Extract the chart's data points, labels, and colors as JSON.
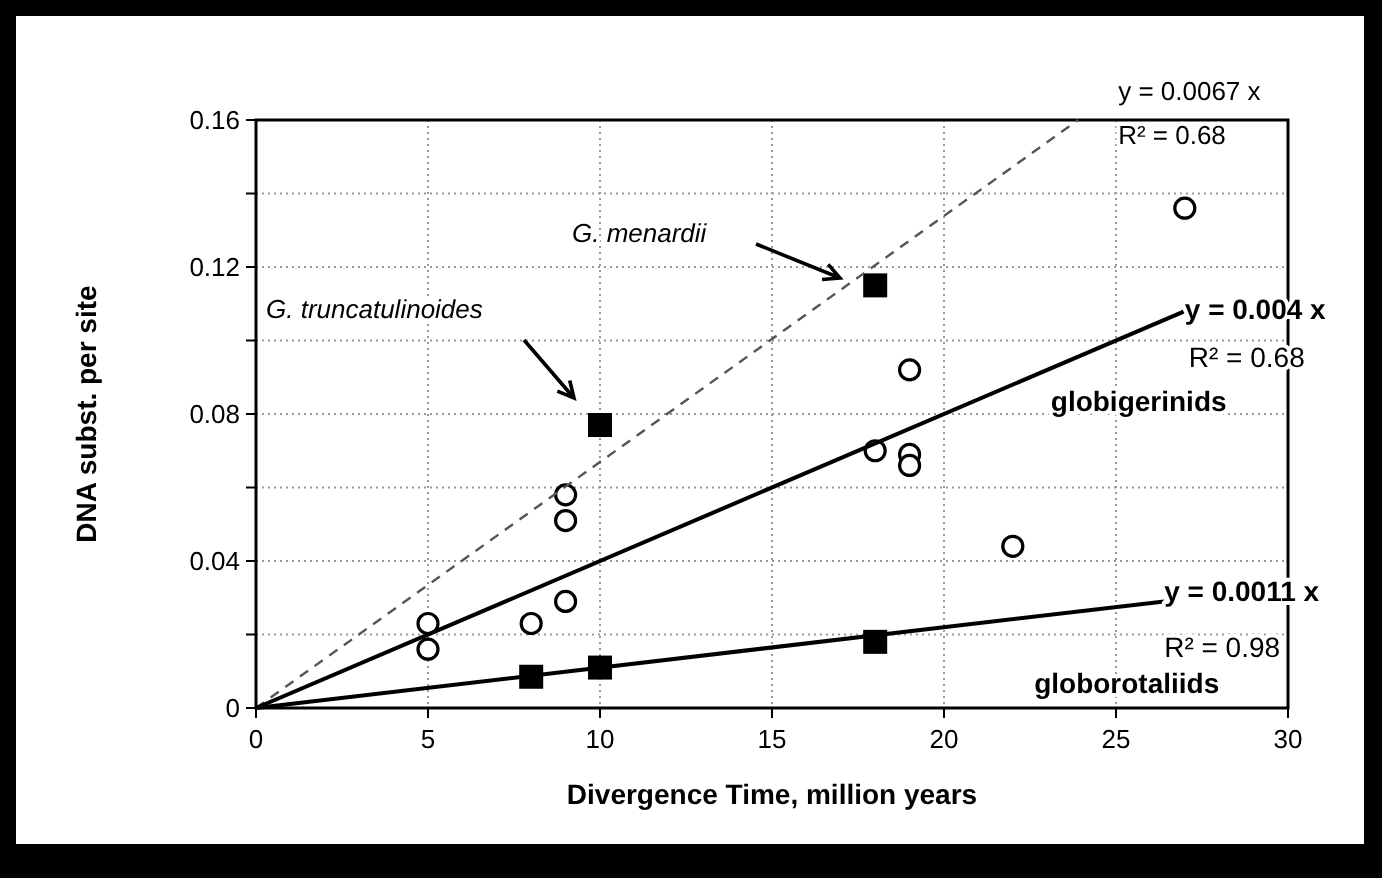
{
  "chart_data": {
    "type": "scatter",
    "xlabel": "Divergence Time, million years",
    "ylabel": "DNA subst. per site",
    "xlim": [
      0,
      30
    ],
    "xticks": [
      0,
      5,
      10,
      15,
      20,
      25,
      30
    ],
    "ylim": [
      0,
      0.16
    ],
    "yticks": [
      0,
      {
        "value": 0.02,
        "label": null
      },
      0.04,
      {
        "value": 0.06,
        "label": null
      },
      0.08,
      {
        "value": 0.1,
        "label": null
      },
      0.12,
      {
        "value": 0.14,
        "label": null
      },
      0.16
    ],
    "grid": true,
    "series": [
      {
        "marker": "circle",
        "color": "#000000",
        "x": [
          5,
          5,
          8,
          9,
          9,
          9,
          18,
          19,
          19,
          19,
          22,
          27
        ],
        "values": [
          0.023,
          0.016,
          0.023,
          0.058,
          0.051,
          0.029,
          0.07,
          0.092,
          0.069,
          0.066,
          0.044,
          0.136
        ]
      },
      {
        "marker": "square",
        "color": "#000000",
        "x": [
          8,
          10,
          10,
          18,
          18
        ],
        "values": [
          0.0085,
          0.011,
          0.077,
          0.018,
          0.115
        ]
      },
      {
        "type": "line",
        "marker": "none",
        "line_style": "dashed",
        "color": "#555555",
        "x": [
          0,
          23.9
        ],
        "values": [
          0,
          0.16
        ]
      },
      {
        "type": "line",
        "marker": "none",
        "line_style": "solid",
        "color": "#000000",
        "x": [
          0,
          27
        ],
        "values": [
          0,
          0.108
        ]
      },
      {
        "type": "line",
        "marker": "none",
        "line_style": "solid",
        "color": "#000000",
        "x": [
          0,
          26.4
        ],
        "values": [
          0,
          0.029
        ]
      }
    ],
    "annotations": [
      {
        "text": "y = 0.0067 x",
        "x": 23.9,
        "y": 0.16
      },
      {
        "text": "R² = 0.68",
        "x": 23.9,
        "y": 0.16
      },
      {
        "text": "y = 0.004 x",
        "x": 27,
        "y": 0.108
      },
      {
        "text": "R² = 0.68",
        "x": 27,
        "y": 0.108
      },
      {
        "text": "globigerinids",
        "x": 27,
        "y": 0.108
      },
      {
        "text": "y = 0.0011 x",
        "x": 26.4,
        "y": 0.029
      },
      {
        "text": "R² = 0.98",
        "x": 26.4,
        "y": 0.029
      },
      {
        "text": "globorotaliids",
        "x": 26.4,
        "y": 0.029
      },
      "G. truncatulinoides",
      "G. menardii"
    ]
  }
}
